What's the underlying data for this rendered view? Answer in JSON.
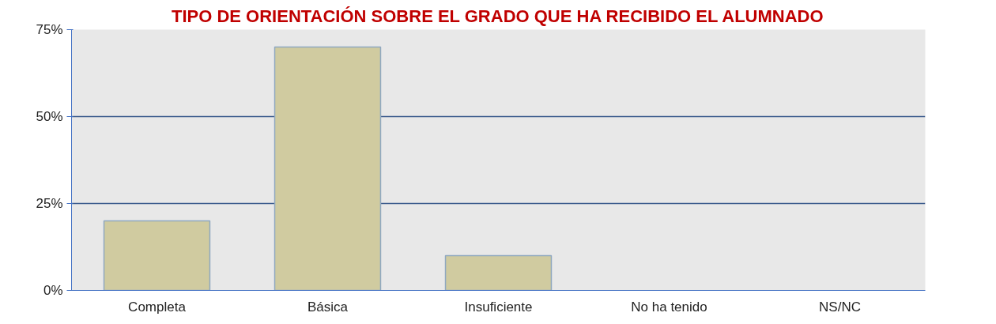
{
  "chart_data": {
    "type": "bar",
    "title": "TIPO DE ORIENTACIÓN SOBRE EL GRADO QUE HA RECIBIDO EL ALUMNADO",
    "categories": [
      "Completa",
      "Básica",
      "Insuficiente",
      "No ha tenido",
      "NS/NC"
    ],
    "values": [
      20,
      70,
      10,
      0,
      0
    ],
    "color": "#d0cba0",
    "ylim": [
      0,
      75
    ],
    "yticks": [
      {
        "value": 0,
        "label": "0%"
      },
      {
        "value": 25,
        "label": "25%"
      },
      {
        "value": 50,
        "label": "50%"
      },
      {
        "value": 75,
        "label": "75%"
      }
    ],
    "grid": "y"
  }
}
